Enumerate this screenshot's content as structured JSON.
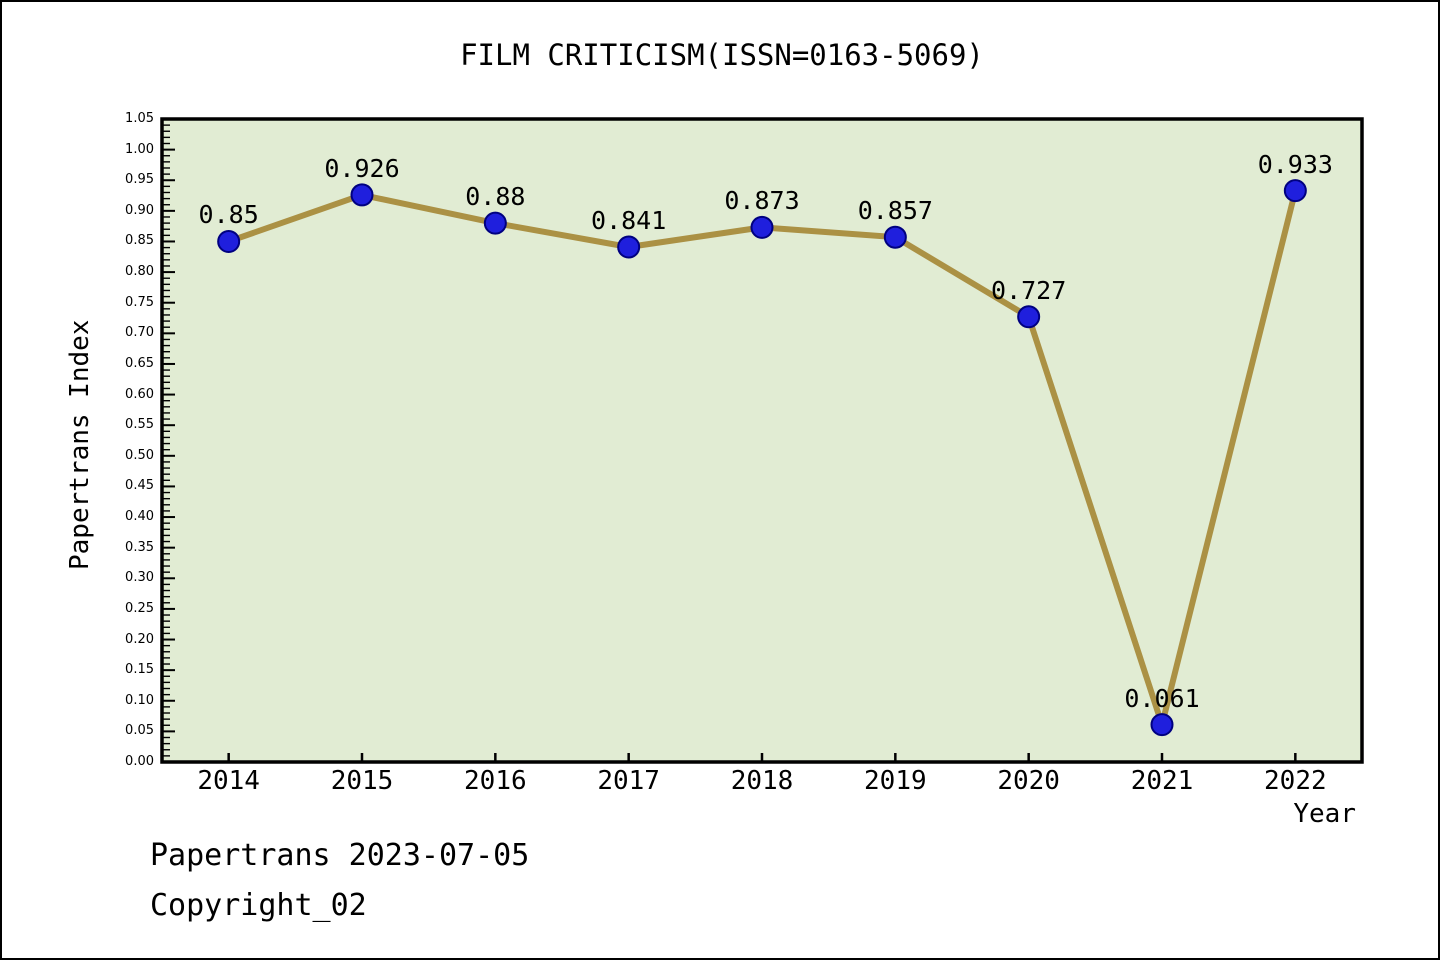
{
  "title": "FILM CRITICISM(ISSN=0163-5069)",
  "chart_data": {
    "type": "line",
    "title": "FILM CRITICISM(ISSN=0163-5069)",
    "categories": [
      "2014",
      "2015",
      "2016",
      "2017",
      "2018",
      "2019",
      "2020",
      "2021",
      "2022"
    ],
    "values": [
      0.85,
      0.926,
      0.88,
      0.841,
      0.873,
      0.857,
      0.727,
      0.061,
      0.933
    ],
    "point_labels": [
      "0.85",
      "0.926",
      "0.88",
      "0.841",
      "0.873",
      "0.857",
      "0.727",
      "0.061",
      "0.933"
    ],
    "xlabel": "Year",
    "ylabel": "Papertrans Index",
    "ylim": [
      0.0,
      1.05
    ],
    "y_major_step": 0.05,
    "y_minor_step": 0.01,
    "grid": "off",
    "legend": "none",
    "colors": {
      "line": "#ab9144",
      "marker_fill": "#1f1fdd",
      "marker_edge": "#000080",
      "plot_background": "#e1ecd3",
      "axis_frame": "#000000",
      "text": "#000000",
      "page_background": "#ffffff"
    }
  },
  "footer": {
    "line1": "Papertrans 2023-07-05",
    "line2": "Copyright_02"
  }
}
